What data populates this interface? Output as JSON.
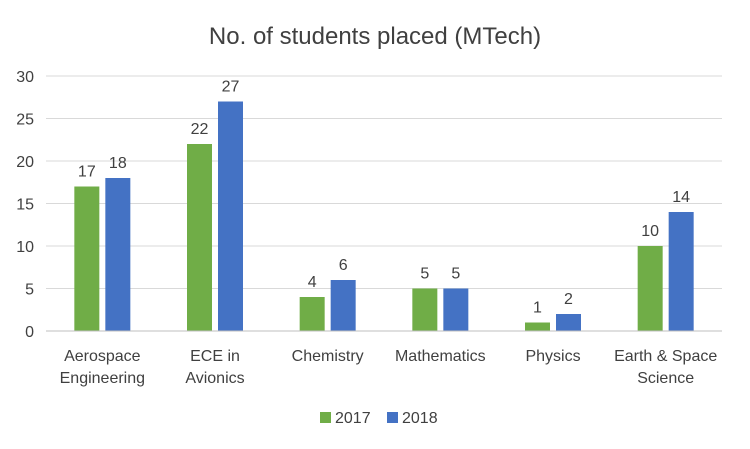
{
  "chart_data": {
    "type": "bar",
    "title": "No. of students placed (MTech)",
    "categories": [
      [
        "Aerospace",
        "Engineering"
      ],
      [
        "ECE in",
        "Avionics"
      ],
      [
        "Chemistry"
      ],
      [
        "Mathematics"
      ],
      [
        "Physics"
      ],
      [
        "Earth & Space",
        "Science"
      ]
    ],
    "series": [
      {
        "name": "2017",
        "color": "#70ad47",
        "values": [
          17,
          22,
          4,
          5,
          1,
          10
        ]
      },
      {
        "name": "2018",
        "color": "#4472c4",
        "values": [
          18,
          27,
          6,
          5,
          2,
          14
        ]
      }
    ],
    "ylim": [
      0,
      30
    ],
    "yticks": [
      0,
      5,
      10,
      15,
      20,
      25,
      30
    ],
    "grid": true,
    "data_labels": true,
    "legend_position": "bottom"
  }
}
